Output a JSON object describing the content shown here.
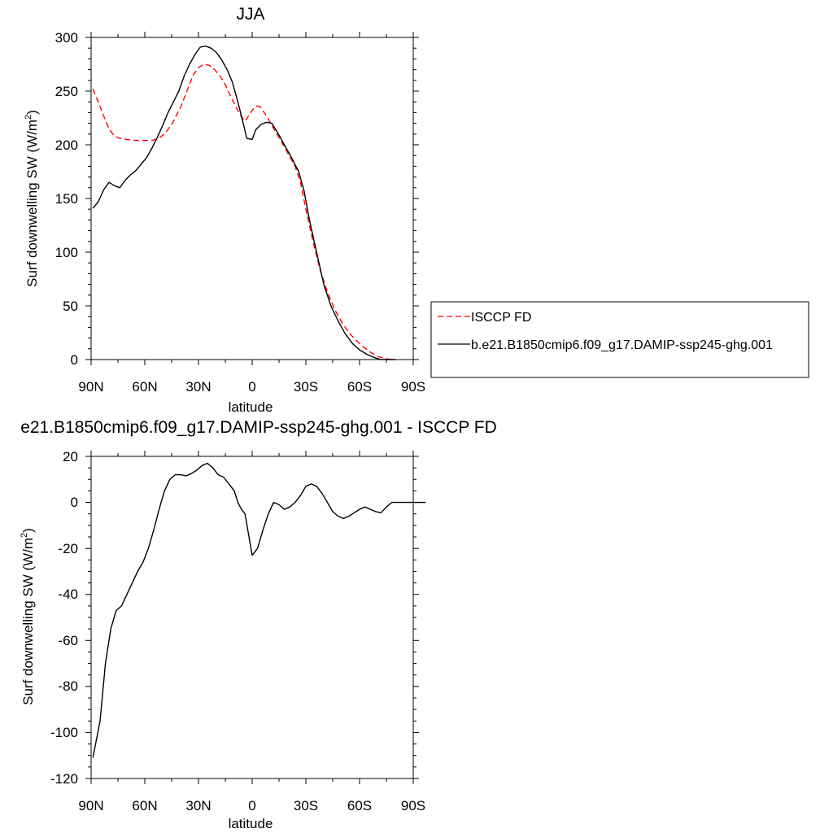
{
  "chart_data": [
    {
      "type": "line",
      "title": "JJA",
      "xlabel": "latitude",
      "ylabel": "Surf downwelling SW (W/m",
      "ylabel_sup": "2",
      "ylabel_end": ")",
      "xlim": [
        90,
        -90
      ],
      "ylim": [
        0,
        300
      ],
      "x_ticks": [
        90,
        60,
        30,
        0,
        -30,
        -60,
        -90
      ],
      "x_tick_labels": [
        "90N",
        "60N",
        "30N",
        "0",
        "30S",
        "60S",
        "90S"
      ],
      "y_ticks": [
        0,
        50,
        100,
        150,
        200,
        250,
        300
      ],
      "y_tick_labels": [
        "0",
        "50",
        "100",
        "150",
        "200",
        "250",
        "300"
      ],
      "legend_position": "right",
      "series": [
        {
          "name": "ISCCP FD",
          "color": "#ff0000",
          "dash": "dashed",
          "points": [
            [
              89,
              252
            ],
            [
              86,
              240
            ],
            [
              83,
              227
            ],
            [
              80,
              215
            ],
            [
              77,
              208
            ],
            [
              74,
              206
            ],
            [
              70,
              205
            ],
            [
              65,
              204
            ],
            [
              60,
              204
            ],
            [
              56,
              204
            ],
            [
              52,
              206
            ],
            [
              48,
              212
            ],
            [
              44,
              222
            ],
            [
              40,
              235
            ],
            [
              36,
              252
            ],
            [
              33,
              265
            ],
            [
              30,
              272
            ],
            [
              27,
              275
            ],
            [
              24,
              274
            ],
            [
              21,
              270
            ],
            [
              18,
              264
            ],
            [
              15,
              256
            ],
            [
              12,
              245
            ],
            [
              9,
              235
            ],
            [
              6,
              226
            ],
            [
              4,
              222
            ],
            [
              2,
              227
            ],
            [
              0,
              232
            ],
            [
              -2,
              236
            ],
            [
              -4,
              236
            ],
            [
              -6,
              232
            ],
            [
              -9,
              224
            ],
            [
              -12,
              215
            ],
            [
              -16,
              204
            ],
            [
              -20,
              192
            ],
            [
              -24,
              180
            ],
            [
              -27,
              165
            ],
            [
              -30,
              140
            ],
            [
              -34,
              110
            ],
            [
              -38,
              83
            ],
            [
              -42,
              63
            ],
            [
              -46,
              47
            ],
            [
              -50,
              35
            ],
            [
              -54,
              25
            ],
            [
              -58,
              18
            ],
            [
              -62,
              12
            ],
            [
              -66,
              7
            ],
            [
              -70,
              3
            ],
            [
              -74,
              1
            ],
            [
              -78,
              0
            ],
            [
              -80,
              0
            ]
          ]
        },
        {
          "name": "b.e21.B1850cmip6.f09_g17.DAMIP-ssp245-ghg.001",
          "color": "#000000",
          "dash": "solid",
          "points": [
            [
              89,
              141
            ],
            [
              86,
              147
            ],
            [
              83,
              158
            ],
            [
              80,
              165
            ],
            [
              77,
              162
            ],
            [
              74,
              160
            ],
            [
              71,
              167
            ],
            [
              68,
              172
            ],
            [
              65,
              176
            ],
            [
              62,
              182
            ],
            [
              59,
              188
            ],
            [
              56,
              197
            ],
            [
              53,
              207
            ],
            [
              50,
              218
            ],
            [
              47,
              230
            ],
            [
              44,
              240
            ],
            [
              41,
              250
            ],
            [
              38,
              264
            ],
            [
              35,
              275
            ],
            [
              32,
              284
            ],
            [
              29,
              291
            ],
            [
              26,
              292
            ],
            [
              23,
              290
            ],
            [
              20,
              286
            ],
            [
              17,
              279
            ],
            [
              14,
              270
            ],
            [
              11,
              258
            ],
            [
              8,
              240
            ],
            [
              5,
              220
            ],
            [
              3,
              206
            ],
            [
              0,
              205
            ],
            [
              -2,
              214
            ],
            [
              -5,
              219
            ],
            [
              -8,
              221
            ],
            [
              -11,
              220
            ],
            [
              -14,
              212
            ],
            [
              -18,
              200
            ],
            [
              -22,
              188
            ],
            [
              -26,
              175
            ],
            [
              -29,
              157
            ],
            [
              -32,
              130
            ],
            [
              -36,
              100
            ],
            [
              -40,
              70
            ],
            [
              -44,
              50
            ],
            [
              -48,
              36
            ],
            [
              -52,
              24
            ],
            [
              -56,
              15
            ],
            [
              -60,
              9
            ],
            [
              -64,
              5
            ],
            [
              -68,
              2
            ],
            [
              -72,
              0
            ],
            [
              -76,
              0
            ],
            [
              -80,
              0
            ]
          ]
        }
      ]
    },
    {
      "type": "line",
      "title": "e21.B1850cmip6.f09_g17.DAMIP-ssp245-ghg.001 - ISCCP FD",
      "xlabel": "latitude",
      "ylabel": "Surf downwelling SW (W/m",
      "ylabel_sup": "2",
      "ylabel_end": ")",
      "xlim": [
        90,
        -90
      ],
      "ylim": [
        -120,
        20
      ],
      "x_ticks": [
        90,
        60,
        30,
        0,
        -30,
        -60,
        -90
      ],
      "x_tick_labels": [
        "90N",
        "60N",
        "30N",
        "0",
        "30S",
        "60S",
        "90S"
      ],
      "y_ticks": [
        20,
        0,
        -20,
        -40,
        -60,
        -80,
        -100,
        -120
      ],
      "y_tick_labels": [
        "20",
        "0",
        "-20",
        "-40",
        "-60",
        "-80",
        "-100",
        "-120"
      ],
      "series": [
        {
          "color": "#000000",
          "dash": "solid",
          "points": [
            [
              89,
              -111
            ],
            [
              85,
              -95
            ],
            [
              82,
              -70
            ],
            [
              79,
              -55
            ],
            [
              76,
              -47
            ],
            [
              73,
              -45
            ],
            [
              70,
              -40
            ],
            [
              67,
              -35
            ],
            [
              64,
              -30
            ],
            [
              61,
              -26
            ],
            [
              58,
              -20
            ],
            [
              55,
              -12
            ],
            [
              52,
              -3
            ],
            [
              49,
              5
            ],
            [
              46,
              10
            ],
            [
              43,
              12
            ],
            [
              40,
              12
            ],
            [
              37,
              11.5
            ],
            [
              34,
              12.5
            ],
            [
              31,
              14
            ],
            [
              28,
              16
            ],
            [
              25,
              17
            ],
            [
              22,
              15
            ],
            [
              19,
              12
            ],
            [
              16,
              11
            ],
            [
              13,
              8
            ],
            [
              10,
              5
            ],
            [
              8,
              0
            ],
            [
              6,
              -3
            ],
            [
              4,
              -5
            ],
            [
              2,
              -14
            ],
            [
              0,
              -23
            ],
            [
              -3,
              -20
            ],
            [
              -6,
              -12
            ],
            [
              -9,
              -5
            ],
            [
              -12,
              0
            ],
            [
              -15,
              -1
            ],
            [
              -18,
              -3
            ],
            [
              -21,
              -2
            ],
            [
              -24,
              0
            ],
            [
              -27,
              3
            ],
            [
              -30,
              7
            ],
            [
              -33,
              8
            ],
            [
              -36,
              7
            ],
            [
              -39,
              4
            ],
            [
              -42,
              0
            ],
            [
              -45,
              -4
            ],
            [
              -48,
              -6
            ],
            [
              -51,
              -7
            ],
            [
              -54,
              -6
            ],
            [
              -57,
              -4.5
            ],
            [
              -60,
              -3
            ],
            [
              -63,
              -2
            ],
            [
              -66,
              -3
            ],
            [
              -69,
              -4
            ],
            [
              -72,
              -4.5
            ],
            [
              -75,
              -2
            ],
            [
              -78,
              0
            ],
            [
              -82,
              0
            ],
            [
              -90,
              0
            ],
            [
              -97,
              0
            ]
          ]
        }
      ]
    }
  ]
}
